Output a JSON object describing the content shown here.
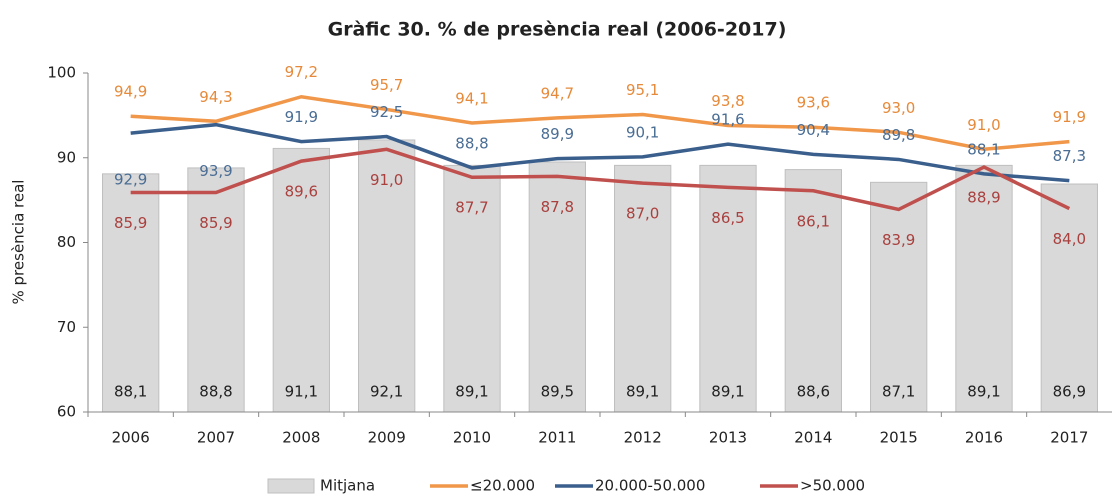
{
  "chart_data": {
    "type": "combo",
    "title": "Gràfic 30. % de presència real (2006-2017)",
    "y_label": "% presència real",
    "categories": [
      "2006",
      "2007",
      "2008",
      "2009",
      "2010",
      "2011",
      "2012",
      "2013",
      "2014",
      "2015",
      "2016",
      "2017"
    ],
    "ylim": [
      60,
      100
    ],
    "yticks": [
      60,
      70,
      80,
      90,
      100
    ],
    "grid": false,
    "legend": "bottom",
    "series": [
      {
        "name": "Mitjana",
        "type": "bar",
        "color": "#d9d9d9",
        "values": [
          88.1,
          88.8,
          91.1,
          92.1,
          89.1,
          89.5,
          89.1,
          89.1,
          88.6,
          87.1,
          89.1,
          86.9
        ],
        "value_labels": [
          "88,1",
          "88,8",
          "91,1",
          "92,1",
          "89,1",
          "89,5",
          "89,1",
          "89,1",
          "88,6",
          "87,1",
          "89,1",
          "86,9"
        ]
      },
      {
        "name": "≤20.000",
        "type": "line",
        "color": "#f0974a",
        "values": [
          94.9,
          94.3,
          97.2,
          95.7,
          94.1,
          94.7,
          95.1,
          93.8,
          93.6,
          93.0,
          91.0,
          91.9
        ],
        "value_labels": [
          "94,9",
          "94,3",
          "97,2",
          "95,7",
          "94,1",
          "94,7",
          "95,1",
          "93,8",
          "93,6",
          "93,0",
          "91,0",
          "91,9"
        ]
      },
      {
        "name": "20.000-50.000",
        "type": "line",
        "color": "#3a5f8c",
        "values": [
          92.9,
          93.9,
          91.9,
          92.5,
          88.8,
          89.9,
          90.1,
          91.6,
          90.4,
          89.8,
          88.1,
          87.3
        ],
        "value_labels": [
          "92,9",
          "93,9",
          "91,9",
          "92,5",
          "88,8",
          "89,9",
          "90,1",
          "91,6",
          "90,4",
          "89,8",
          "88,1",
          "87,3"
        ]
      },
      {
        "name": ">50.000",
        "type": "line",
        "color": "#c0504d",
        "values": [
          85.9,
          85.9,
          89.6,
          91.0,
          87.7,
          87.8,
          87.0,
          86.5,
          86.1,
          83.9,
          88.9,
          84.0
        ],
        "value_labels": [
          "85,9",
          "85,9",
          "89,6",
          "91,0",
          "87,7",
          "87,8",
          "87,0",
          "86,5",
          "86,1",
          "83,9",
          "88,9",
          "84,0"
        ]
      }
    ]
  }
}
